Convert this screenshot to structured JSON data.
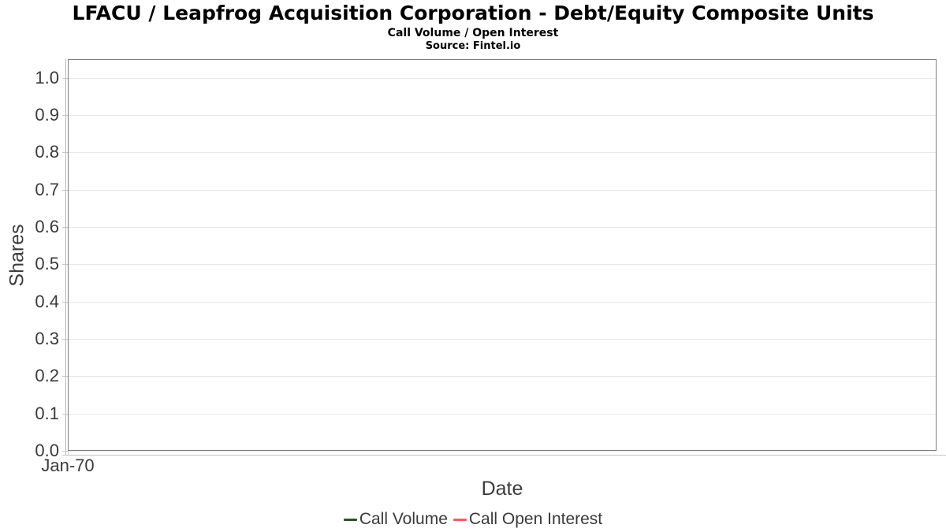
{
  "header": {
    "title": "LFACU / Leapfrog Acquisition Corporation - Debt/Equity Composite Units",
    "subtitle": "Call Volume / Open Interest",
    "source": "Source: Fintel.io"
  },
  "chart_data": {
    "type": "line",
    "title": "LFACU / Leapfrog Acquisition Corporation - Debt/Equity Composite Units",
    "subtitle": "Call Volume / Open Interest",
    "source": "Source: Fintel.io",
    "xlabel": "Date",
    "ylabel": "Shares",
    "x_ticks": [
      {
        "label": "Jan-70",
        "t": 0
      }
    ],
    "y_ticks": [
      "0.0",
      "0.1",
      "0.2",
      "0.3",
      "0.4",
      "0.5",
      "0.6",
      "0.7",
      "0.8",
      "0.9",
      "1.0"
    ],
    "ylim": [
      0.0,
      1.05
    ],
    "grid": true,
    "legend_position": "bottom",
    "series": [
      {
        "name": "Call Volume",
        "color": "#235232",
        "x": [],
        "values": []
      },
      {
        "name": "Call Open Interest",
        "color": "#fb5c5c",
        "x": [],
        "values": []
      }
    ]
  },
  "colors": {
    "plot_border": "#808080",
    "gridline": "#e8e8e8",
    "axis_line": "#b4b4b4",
    "tick_mark": "#c8c8c8",
    "label_text": "#3a3a3a",
    "title_text": "#000000"
  }
}
